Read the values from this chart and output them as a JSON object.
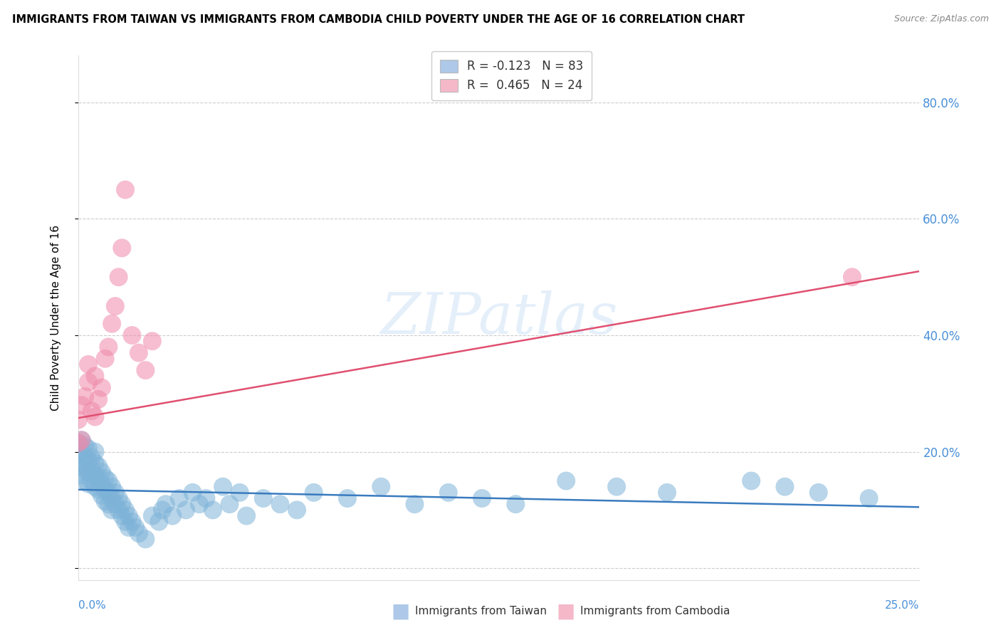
{
  "title": "IMMIGRANTS FROM TAIWAN VS IMMIGRANTS FROM CAMBODIA CHILD POVERTY UNDER THE AGE OF 16 CORRELATION CHART",
  "source": "Source: ZipAtlas.com",
  "ylabel": "Child Poverty Under the Age of 16",
  "xlim": [
    0.0,
    0.25
  ],
  "ylim": [
    -0.02,
    0.88
  ],
  "watermark": "ZIPatlas",
  "legend_taiwan_color": "#adc8e8",
  "legend_cambodia_color": "#f4b8c8",
  "taiwan_scatter_color": "#7eb3d8",
  "cambodia_scatter_color": "#f08aaa",
  "taiwan_line_color": "#3a7bbf",
  "cambodia_line_color": "#e05070",
  "R_taiwan": -0.123,
  "N_taiwan": 83,
  "R_cambodia": 0.465,
  "N_cambodia": 24,
  "ytick_vals": [
    0.0,
    0.2,
    0.4,
    0.6,
    0.8
  ],
  "ytick_labels": [
    "",
    "20.0%",
    "40.0%",
    "60.0%",
    "80.0%"
  ],
  "taiwan_x": [
    0.0,
    0.0,
    0.0,
    0.001,
    0.001,
    0.001,
    0.001,
    0.002,
    0.002,
    0.002,
    0.002,
    0.003,
    0.003,
    0.003,
    0.003,
    0.004,
    0.004,
    0.004,
    0.005,
    0.005,
    0.005,
    0.005,
    0.006,
    0.006,
    0.006,
    0.007,
    0.007,
    0.007,
    0.008,
    0.008,
    0.008,
    0.009,
    0.009,
    0.009,
    0.01,
    0.01,
    0.01,
    0.011,
    0.011,
    0.012,
    0.012,
    0.013,
    0.013,
    0.014,
    0.014,
    0.015,
    0.015,
    0.016,
    0.017,
    0.018,
    0.02,
    0.022,
    0.024,
    0.025,
    0.026,
    0.028,
    0.03,
    0.032,
    0.034,
    0.036,
    0.038,
    0.04,
    0.043,
    0.045,
    0.048,
    0.05,
    0.055,
    0.06,
    0.065,
    0.07,
    0.08,
    0.09,
    0.1,
    0.11,
    0.12,
    0.13,
    0.145,
    0.16,
    0.175,
    0.2,
    0.21,
    0.22,
    0.235
  ],
  "taiwan_y": [
    0.215,
    0.195,
    0.175,
    0.22,
    0.2,
    0.18,
    0.16,
    0.21,
    0.19,
    0.17,
    0.15,
    0.205,
    0.185,
    0.165,
    0.145,
    0.19,
    0.17,
    0.15,
    0.2,
    0.18,
    0.16,
    0.14,
    0.175,
    0.155,
    0.135,
    0.165,
    0.145,
    0.125,
    0.155,
    0.135,
    0.115,
    0.15,
    0.13,
    0.11,
    0.14,
    0.12,
    0.1,
    0.13,
    0.11,
    0.12,
    0.1,
    0.11,
    0.09,
    0.1,
    0.08,
    0.09,
    0.07,
    0.08,
    0.07,
    0.06,
    0.05,
    0.09,
    0.08,
    0.1,
    0.11,
    0.09,
    0.12,
    0.1,
    0.13,
    0.11,
    0.12,
    0.1,
    0.14,
    0.11,
    0.13,
    0.09,
    0.12,
    0.11,
    0.1,
    0.13,
    0.12,
    0.14,
    0.11,
    0.13,
    0.12,
    0.11,
    0.15,
    0.14,
    0.13,
    0.15,
    0.14,
    0.13,
    0.12
  ],
  "cambodia_x": [
    0.0,
    0.0,
    0.001,
    0.001,
    0.002,
    0.003,
    0.003,
    0.004,
    0.005,
    0.005,
    0.006,
    0.007,
    0.008,
    0.009,
    0.01,
    0.011,
    0.012,
    0.013,
    0.014,
    0.016,
    0.018,
    0.02,
    0.022,
    0.23
  ],
  "cambodia_y": [
    0.255,
    0.215,
    0.28,
    0.22,
    0.295,
    0.35,
    0.32,
    0.27,
    0.26,
    0.33,
    0.29,
    0.31,
    0.36,
    0.38,
    0.42,
    0.45,
    0.5,
    0.55,
    0.65,
    0.4,
    0.37,
    0.34,
    0.39,
    0.5
  ],
  "tw_line_x0": 0.0,
  "tw_line_x1": 0.25,
  "tw_line_y0": 0.135,
  "tw_line_y1": 0.105,
  "cam_line_x0": 0.0,
  "cam_line_x1": 0.25,
  "cam_line_y0": 0.258,
  "cam_line_y1": 0.51
}
